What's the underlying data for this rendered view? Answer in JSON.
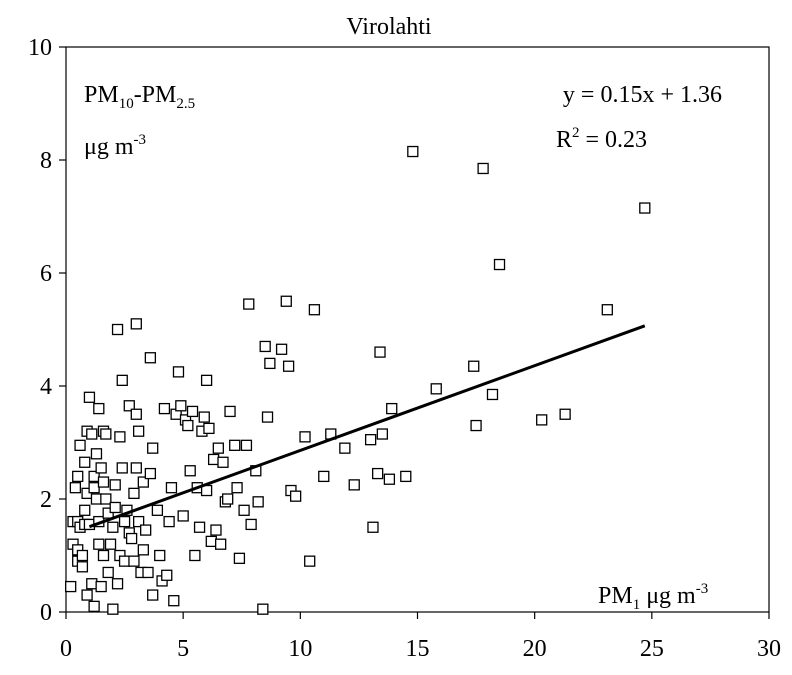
{
  "chart_data": {
    "type": "scatter",
    "title": "Virolahti",
    "annotation_main": {
      "p1": "PM",
      "s1": "10",
      "p2": "-PM",
      "s2": "2.5"
    },
    "annotation_unit": {
      "p1": "μg m",
      "sup": "-3"
    },
    "xlabel_annotation": {
      "p1": "PM",
      "sub": "1",
      "p2": " μg m",
      "sup": "-3"
    },
    "equation": "y = 0.15x + 1.36",
    "r2": {
      "p1": "R",
      "sup": "2",
      "p2": " = 0.23"
    },
    "xlim": [
      0,
      30
    ],
    "ylim": [
      0,
      10
    ],
    "xticks": [
      "0",
      "5",
      "10",
      "15",
      "20",
      "25",
      "30"
    ],
    "yticks": [
      "0",
      "2",
      "4",
      "6",
      "8",
      "10"
    ],
    "trendline": {
      "slope": 0.15,
      "intercept": 1.36,
      "x_start": 1.0,
      "x_end": 24.7
    },
    "points": [
      [
        0.2,
        0.45
      ],
      [
        0.3,
        1.6
      ],
      [
        0.3,
        1.2
      ],
      [
        0.4,
        2.2
      ],
      [
        0.5,
        2.4
      ],
      [
        0.5,
        1.6
      ],
      [
        0.5,
        1.1
      ],
      [
        0.5,
        0.9
      ],
      [
        0.6,
        2.95
      ],
      [
        0.6,
        1.5
      ],
      [
        0.7,
        1.0
      ],
      [
        0.7,
        0.8
      ],
      [
        0.8,
        2.65
      ],
      [
        0.8,
        1.8
      ],
      [
        0.8,
        1.55
      ],
      [
        0.9,
        3.2
      ],
      [
        0.9,
        2.1
      ],
      [
        0.9,
        0.3
      ],
      [
        1.0,
        3.8
      ],
      [
        1.0,
        1.55
      ],
      [
        1.1,
        3.15
      ],
      [
        1.1,
        0.5
      ],
      [
        1.2,
        2.4
      ],
      [
        1.2,
        2.2
      ],
      [
        1.2,
        0.1
      ],
      [
        1.3,
        2.8
      ],
      [
        1.3,
        2.0
      ],
      [
        1.4,
        3.6
      ],
      [
        1.4,
        1.6
      ],
      [
        1.4,
        1.2
      ],
      [
        1.5,
        2.55
      ],
      [
        1.5,
        0.45
      ],
      [
        1.6,
        3.2
      ],
      [
        1.6,
        2.3
      ],
      [
        1.6,
        1.0
      ],
      [
        1.7,
        3.15
      ],
      [
        1.7,
        2.0
      ],
      [
        1.8,
        1.75
      ],
      [
        1.8,
        0.7
      ],
      [
        1.9,
        1.2
      ],
      [
        2.0,
        1.5
      ],
      [
        2.0,
        0.05
      ],
      [
        2.1,
        2.25
      ],
      [
        2.1,
        1.85
      ],
      [
        2.2,
        5.0
      ],
      [
        2.2,
        0.5
      ],
      [
        2.3,
        3.1
      ],
      [
        2.3,
        1.0
      ],
      [
        2.4,
        4.1
      ],
      [
        2.4,
        2.55
      ],
      [
        2.5,
        1.6
      ],
      [
        2.5,
        0.9
      ],
      [
        2.6,
        1.8
      ],
      [
        2.7,
        3.65
      ],
      [
        2.7,
        1.4
      ],
      [
        2.8,
        1.3
      ],
      [
        2.9,
        2.1
      ],
      [
        2.9,
        0.9
      ],
      [
        3.0,
        5.1
      ],
      [
        3.0,
        3.5
      ],
      [
        3.0,
        2.55
      ],
      [
        3.1,
        3.2
      ],
      [
        3.1,
        1.6
      ],
      [
        3.2,
        0.7
      ],
      [
        3.3,
        2.3
      ],
      [
        3.3,
        1.1
      ],
      [
        3.4,
        1.45
      ],
      [
        3.5,
        0.7
      ],
      [
        3.6,
        4.5
      ],
      [
        3.6,
        2.45
      ],
      [
        3.7,
        2.9
      ],
      [
        3.7,
        0.3
      ],
      [
        3.9,
        1.8
      ],
      [
        4.0,
        1.0
      ],
      [
        4.1,
        0.55
      ],
      [
        4.2,
        3.6
      ],
      [
        4.3,
        0.65
      ],
      [
        4.4,
        1.6
      ],
      [
        4.5,
        2.2
      ],
      [
        4.6,
        0.2
      ],
      [
        4.7,
        3.5
      ],
      [
        4.8,
        4.25
      ],
      [
        4.9,
        3.65
      ],
      [
        5.0,
        1.7
      ],
      [
        5.1,
        3.4
      ],
      [
        5.2,
        3.3
      ],
      [
        5.3,
        2.5
      ],
      [
        5.4,
        3.55
      ],
      [
        5.5,
        1.0
      ],
      [
        5.6,
        2.2
      ],
      [
        5.7,
        1.5
      ],
      [
        5.8,
        3.2
      ],
      [
        5.9,
        3.45
      ],
      [
        6.0,
        4.1
      ],
      [
        6.0,
        2.15
      ],
      [
        6.1,
        3.25
      ],
      [
        6.2,
        1.25
      ],
      [
        6.3,
        2.7
      ],
      [
        6.4,
        1.45
      ],
      [
        6.5,
        2.9
      ],
      [
        6.6,
        1.2
      ],
      [
        6.7,
        2.65
      ],
      [
        6.8,
        1.95
      ],
      [
        6.9,
        2.0
      ],
      [
        7.0,
        3.55
      ],
      [
        7.2,
        2.95
      ],
      [
        7.3,
        2.2
      ],
      [
        7.4,
        0.95
      ],
      [
        7.6,
        1.8
      ],
      [
        7.7,
        2.95
      ],
      [
        7.8,
        5.45
      ],
      [
        7.9,
        1.55
      ],
      [
        8.1,
        2.5
      ],
      [
        8.2,
        1.95
      ],
      [
        8.4,
        0.05
      ],
      [
        8.5,
        4.7
      ],
      [
        8.6,
        3.45
      ],
      [
        8.7,
        4.4
      ],
      [
        9.2,
        4.65
      ],
      [
        9.4,
        5.5
      ],
      [
        9.5,
        4.35
      ],
      [
        9.6,
        2.15
      ],
      [
        9.8,
        2.05
      ],
      [
        10.2,
        3.1
      ],
      [
        10.4,
        0.9
      ],
      [
        10.6,
        5.35
      ],
      [
        11.0,
        2.4
      ],
      [
        11.3,
        3.15
      ],
      [
        11.9,
        2.9
      ],
      [
        12.3,
        2.25
      ],
      [
        13.0,
        3.05
      ],
      [
        13.1,
        1.5
      ],
      [
        13.3,
        2.45
      ],
      [
        13.4,
        4.6
      ],
      [
        13.5,
        3.15
      ],
      [
        13.8,
        2.35
      ],
      [
        13.9,
        3.6
      ],
      [
        14.5,
        2.4
      ],
      [
        14.8,
        8.15
      ],
      [
        15.8,
        3.95
      ],
      [
        17.4,
        4.35
      ],
      [
        17.5,
        3.3
      ],
      [
        17.8,
        7.85
      ],
      [
        18.2,
        3.85
      ],
      [
        18.5,
        6.15
      ],
      [
        20.3,
        3.4
      ],
      [
        21.3,
        3.5
      ],
      [
        23.1,
        5.35
      ],
      [
        24.7,
        7.15
      ]
    ]
  }
}
